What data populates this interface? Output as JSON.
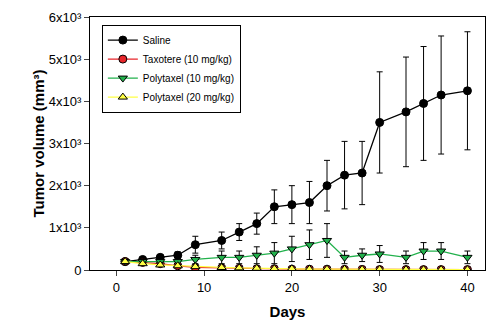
{
  "chart_data": {
    "type": "line",
    "x_label": "Days",
    "y_label": "Tumor volume (mm³)",
    "xlim": [
      -3,
      42
    ],
    "xticks": [
      0,
      10,
      20,
      30,
      40
    ],
    "ylim": [
      0,
      6000
    ],
    "yticks": [
      0,
      {
        "value": 1000,
        "label": "1x10³"
      },
      {
        "value": 2000,
        "label": "2x10³"
      },
      {
        "value": 3000,
        "label": "3x10³"
      },
      {
        "value": 4000,
        "label": "4x10³"
      },
      {
        "value": 5000,
        "label": "5x10³"
      },
      {
        "value": 6000,
        "label": "6x10³"
      }
    ],
    "grid": false,
    "legend": "upper left",
    "x": [
      1,
      3,
      5,
      7,
      9,
      12,
      14,
      16,
      18,
      20,
      22,
      24,
      26,
      28,
      30,
      33,
      35,
      37,
      40
    ],
    "series": [
      {
        "name": "Saline",
        "color": "#000000",
        "marker": "circle",
        "values": [
          200,
          250,
          300,
          350,
          600,
          700,
          900,
          1100,
          1500,
          1550,
          1600,
          2000,
          2250,
          2300,
          3500,
          3750,
          3950,
          4150,
          4250
        ],
        "errors": [
          30,
          50,
          60,
          80,
          200,
          200,
          200,
          250,
          400,
          450,
          500,
          600,
          800,
          750,
          1200,
          1300,
          1350,
          1400,
          1400
        ]
      },
      {
        "name": "Taxotere (10 mg/kg)",
        "color": "#e8252a",
        "marker": "circle",
        "values": [
          200,
          180,
          150,
          100,
          60,
          50,
          40,
          30,
          30,
          20,
          20,
          20,
          15,
          15,
          10,
          10,
          10,
          10,
          10
        ],
        "errors": [
          30,
          30,
          30,
          20,
          20,
          15,
          15,
          10,
          10,
          10,
          10,
          10,
          10,
          10,
          10,
          10,
          10,
          10,
          10
        ]
      },
      {
        "name": "Polytaxel (10 mg/kg)",
        "color": "#22b14c",
        "marker": "triangle-down",
        "values": [
          200,
          200,
          200,
          200,
          250,
          300,
          300,
          350,
          400,
          500,
          600,
          700,
          300,
          350,
          380,
          300,
          450,
          450,
          300
        ],
        "errors": [
          40,
          50,
          60,
          80,
          100,
          150,
          150,
          200,
          250,
          300,
          350,
          400,
          150,
          150,
          200,
          150,
          200,
          200,
          150
        ]
      },
      {
        "name": "Polytaxel (20 mg/kg)",
        "color": "#ffff44",
        "marker": "triangle-up",
        "values": [
          200,
          150,
          120,
          100,
          80,
          60,
          50,
          40,
          30,
          30,
          20,
          20,
          20,
          15,
          15,
          10,
          10,
          10,
          10
        ],
        "errors": [
          30,
          30,
          20,
          20,
          20,
          15,
          15,
          10,
          10,
          10,
          10,
          10,
          10,
          10,
          10,
          10,
          10,
          10,
          10
        ]
      }
    ]
  }
}
